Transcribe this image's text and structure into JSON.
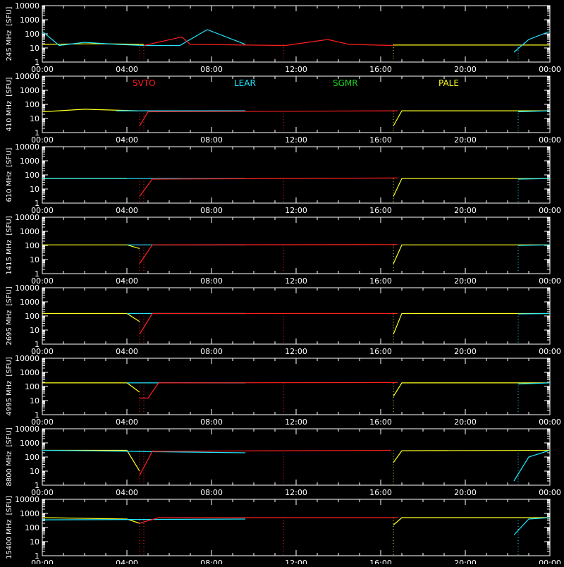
{
  "chart_data": {
    "type": "line",
    "x_ticks": [
      "00:00",
      "04:00",
      "08:00",
      "12:00",
      "16:00",
      "20:00",
      "00:00"
    ],
    "y_tick_labels": [
      "1",
      "10",
      "100",
      "1000",
      "10000"
    ],
    "y_unit": "[SFU]",
    "yscale": "log",
    "ylim": [
      1,
      10000
    ],
    "xlim_hours": [
      0,
      24
    ],
    "legend": [
      {
        "name": "SVTO",
        "color": "#ff2020"
      },
      {
        "name": "LEAR",
        "color": "#20e8ff"
      },
      {
        "name": "SGMR",
        "color": "#20d020"
      },
      {
        "name": "PALE",
        "color": "#ffff20"
      }
    ],
    "panels": [
      {
        "ylabel": "245 MHz",
        "base_level": 18,
        "segments": [
          {
            "station": "PALE",
            "x": [
              0,
              2.5,
              4.8
            ],
            "y": [
              18,
              20,
              18
            ]
          },
          {
            "station": "LEAR",
            "x": [
              0,
              0.8,
              2,
              3.5,
              4.8,
              6.5,
              7.8,
              9.6
            ],
            "y": [
              150,
              15,
              25,
              18,
              15,
              15,
              200,
              18
            ]
          },
          {
            "station": "SVTO",
            "x": [
              4.8,
              6.6,
              7.0,
              11.5,
              13.5,
              14.5,
              16.6
            ],
            "y": [
              15,
              60,
              18,
              15,
              40,
              18,
              15
            ]
          },
          {
            "station": "PALE",
            "x": [
              16.6,
              22.0,
              24
            ],
            "y": [
              16,
              16,
              16
            ]
          },
          {
            "station": "LEAR",
            "x": [
              22.3,
              23.0,
              24
            ],
            "y": [
              5,
              40,
              150
            ]
          }
        ]
      },
      {
        "ylabel": "410 MHz",
        "base_level": 35,
        "segments": [
          {
            "station": "PALE",
            "x": [
              0,
              2.0,
              4.5
            ],
            "y": [
              30,
              45,
              35
            ]
          },
          {
            "station": "LEAR",
            "x": [
              3.5,
              9.6
            ],
            "y": [
              35,
              35
            ]
          },
          {
            "station": "SVTO",
            "x": [
              4.6,
              5.0,
              16.8
            ],
            "y": [
              3,
              30,
              35
            ]
          },
          {
            "station": "PALE",
            "x": [
              16.6,
              17.0,
              24
            ],
            "y": [
              3,
              35,
              35
            ]
          },
          {
            "station": "LEAR",
            "x": [
              22.5,
              24
            ],
            "y": [
              30,
              35
            ]
          }
        ]
      },
      {
        "ylabel": "610 MHz",
        "base_level": 55,
        "segments": [
          {
            "station": "PALE",
            "x": [
              0,
              4.0
            ],
            "y": [
              55,
              55
            ]
          },
          {
            "station": "LEAR",
            "x": [
              0,
              9.6
            ],
            "y": [
              55,
              55
            ]
          },
          {
            "station": "SVTO",
            "x": [
              4.6,
              5.2,
              16.8
            ],
            "y": [
              3,
              50,
              60
            ]
          },
          {
            "station": "PALE",
            "x": [
              16.6,
              17.0,
              24
            ],
            "y": [
              3,
              55,
              55
            ]
          },
          {
            "station": "LEAR",
            "x": [
              22.5,
              24
            ],
            "y": [
              50,
              55
            ]
          }
        ]
      },
      {
        "ylabel": "1415 MHz",
        "base_level": 110,
        "segments": [
          {
            "station": "PALE",
            "x": [
              0,
              4.0,
              4.6
            ],
            "y": [
              110,
              110,
              60
            ]
          },
          {
            "station": "LEAR",
            "x": [
              4.0,
              9.6
            ],
            "y": [
              110,
              110
            ]
          },
          {
            "station": "SVTO",
            "x": [
              4.6,
              5.2,
              16.8
            ],
            "y": [
              5,
              110,
              115
            ]
          },
          {
            "station": "PALE",
            "x": [
              16.6,
              17.0,
              24
            ],
            "y": [
              5,
              110,
              110
            ]
          },
          {
            "station": "LEAR",
            "x": [
              22.5,
              24
            ],
            "y": [
              100,
              110
            ]
          }
        ]
      },
      {
        "ylabel": "2695 MHz",
        "base_level": 150,
        "segments": [
          {
            "station": "PALE",
            "x": [
              0,
              4.0,
              4.6
            ],
            "y": [
              150,
              150,
              40
            ]
          },
          {
            "station": "LEAR",
            "x": [
              4.0,
              9.6
            ],
            "y": [
              150,
              150
            ]
          },
          {
            "station": "SVTO",
            "x": [
              4.6,
              5.2,
              16.8
            ],
            "y": [
              5,
              150,
              150
            ]
          },
          {
            "station": "PALE",
            "x": [
              16.6,
              17.0,
              24
            ],
            "y": [
              5,
              150,
              150
            ]
          },
          {
            "station": "LEAR",
            "x": [
              22.5,
              24
            ],
            "y": [
              140,
              150
            ]
          }
        ]
      },
      {
        "ylabel": "4995 MHz",
        "base_level": 180,
        "segments": [
          {
            "station": "PALE",
            "x": [
              0,
              4.0,
              4.6
            ],
            "y": [
              180,
              180,
              40
            ]
          },
          {
            "station": "LEAR",
            "x": [
              4.0,
              9.6
            ],
            "y": [
              180,
              180
            ]
          },
          {
            "station": "SVTO",
            "x": [
              4.6,
              5.0,
              5.5,
              16.8
            ],
            "y": [
              15,
              15,
              180,
              190
            ]
          },
          {
            "station": "PALE",
            "x": [
              16.6,
              17.0,
              24
            ],
            "y": [
              20,
              180,
              180
            ]
          },
          {
            "station": "LEAR",
            "x": [
              22.5,
              24
            ],
            "y": [
              150,
              180
            ]
          }
        ]
      },
      {
        "ylabel": "8800 MHz",
        "base_level": 300,
        "segments": [
          {
            "station": "PALE",
            "x": [
              0,
              4.0,
              4.6
            ],
            "y": [
              300,
              300,
              10
            ]
          },
          {
            "station": "LEAR",
            "x": [
              0,
              9.6
            ],
            "y": [
              300,
              200
            ]
          },
          {
            "station": "SVTO",
            "x": [
              4.6,
              5.2,
              16.5
            ],
            "y": [
              5,
              250,
              300
            ]
          },
          {
            "station": "PALE",
            "x": [
              16.6,
              17.0,
              24
            ],
            "y": [
              40,
              280,
              300
            ]
          },
          {
            "station": "LEAR",
            "x": [
              22.3,
              23.0,
              24
            ],
            "y": [
              2,
              100,
              300
            ]
          }
        ]
      },
      {
        "ylabel": "15400 MHz",
        "base_level": 500,
        "segments": [
          {
            "station": "PALE",
            "x": [
              0,
              4.0,
              4.6
            ],
            "y": [
              500,
              400,
              200
            ]
          },
          {
            "station": "LEAR",
            "x": [
              0,
              9.6
            ],
            "y": [
              350,
              400
            ]
          },
          {
            "station": "SVTO",
            "x": [
              4.6,
              5.5,
              16.8
            ],
            "y": [
              200,
              500,
              500
            ]
          },
          {
            "station": "PALE",
            "x": [
              16.6,
              17.0,
              24
            ],
            "y": [
              150,
              500,
              500
            ]
          },
          {
            "station": "LEAR",
            "x": [
              22.3,
              23.0,
              24
            ],
            "y": [
              30,
              400,
              500
            ]
          }
        ]
      }
    ]
  }
}
